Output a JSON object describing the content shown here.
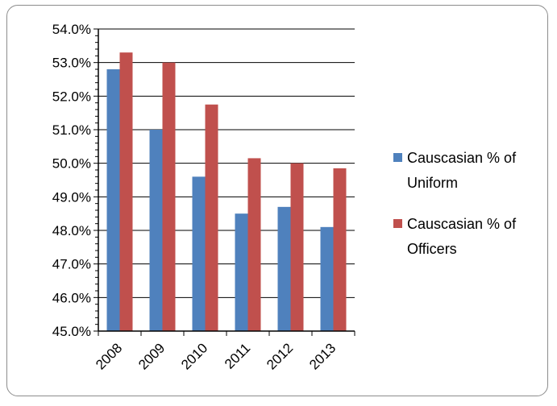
{
  "chart_data": {
    "type": "bar",
    "categories": [
      "2008",
      "2009",
      "2010",
      "2011",
      "2012",
      "2013"
    ],
    "series": [
      {
        "name": "Causcasian % of Uniform",
        "values": [
          52.8,
          51.0,
          49.6,
          48.5,
          48.7,
          48.1
        ],
        "color": "#4f81bd"
      },
      {
        "name": "Causcasian % of Officers",
        "values": [
          53.3,
          53.0,
          51.75,
          50.15,
          50.0,
          49.85
        ],
        "color": "#c0504d"
      }
    ],
    "y_ticks": [
      "45.0%",
      "46.0%",
      "47.0%",
      "48.0%",
      "49.0%",
      "50.0%",
      "51.0%",
      "52.0%",
      "53.0%",
      "54.0%"
    ],
    "ylim": [
      45,
      54
    ],
    "legend_position": "right",
    "grid": true,
    "legend": [
      {
        "line1": "Causcasian % of",
        "line2": "Uniform"
      },
      {
        "line1": "Causcasian % of",
        "line2": "Officers"
      }
    ]
  }
}
